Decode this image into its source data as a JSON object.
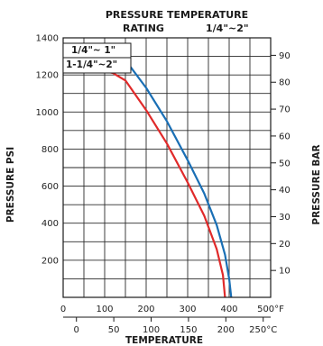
{
  "chart_data": {
    "type": "line",
    "title": "PRESSURE TEMPERATURE",
    "subtitle_left": "RATING",
    "subtitle_right": "1/4\"~2\"",
    "xlabel": "TEMPERATURE",
    "ylabel_left": "PRESSURE PSI",
    "ylabel_right": "PRESSURE BAR",
    "xlim_f": [
      0,
      500
    ],
    "ylim_psi": [
      0,
      1400
    ],
    "ylim_bar": [
      0,
      96.5
    ],
    "grid": true,
    "legend_placement": "top-left",
    "x_ticks_f": [
      "0",
      "100",
      "200",
      "300",
      "400",
      "500°F"
    ],
    "x_ticks_c": [
      "0",
      "50",
      "100",
      "150",
      "200",
      "250°C"
    ],
    "x_ticks_c_values_f": [
      32,
      122,
      212,
      302,
      392,
      482
    ],
    "y_ticks_psi": [
      "200",
      "400",
      "600",
      "800",
      "1000",
      "1200",
      "1400"
    ],
    "y_ticks_psi_values": [
      200,
      400,
      600,
      800,
      1000,
      1200,
      1400
    ],
    "y_ticks_bar": [
      "10",
      "20",
      "30",
      "40",
      "50",
      "60",
      "70",
      "80",
      "90"
    ],
    "y_ticks_bar_values": [
      10,
      20,
      30,
      40,
      50,
      60,
      70,
      80,
      90
    ],
    "series": [
      {
        "name": "1/4\"~ 1\"",
        "color": "#1a6fb5",
        "x": [
          0,
          100,
          130,
          150,
          200,
          250,
          300,
          340,
          370,
          390,
          400,
          405
        ],
        "y": [
          1305,
          1305,
          1300,
          1280,
          1130,
          950,
          740,
          560,
          390,
          230,
          100,
          0
        ]
      },
      {
        "name": "1-1/4\"~2\"",
        "color": "#e02a2a",
        "x": [
          0,
          100,
          120,
          150,
          200,
          250,
          300,
          340,
          370,
          385,
          390
        ],
        "y": [
          1220,
          1220,
          1210,
          1170,
          1010,
          830,
          620,
          440,
          260,
          120,
          0
        ]
      }
    ]
  }
}
